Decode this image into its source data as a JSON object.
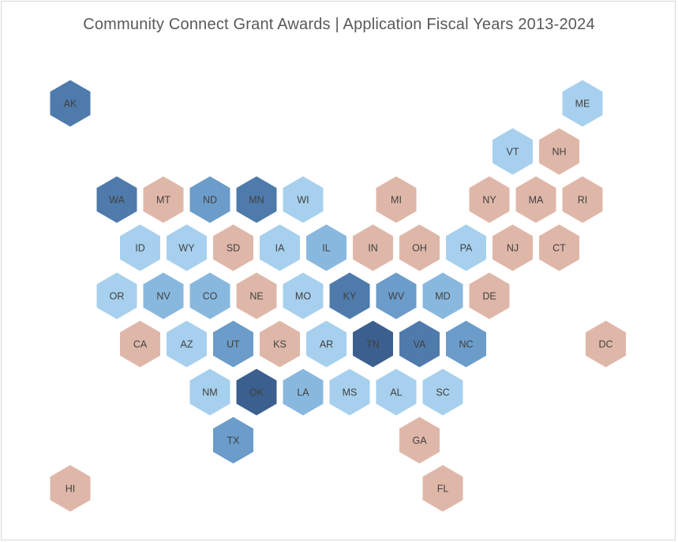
{
  "title": "Community Connect Grant Awards | Application Fiscal Years 2013-2024",
  "colors": {
    "light": "#a7d0ee",
    "medium": "#89b8df",
    "mid_dark": "#6b9cca",
    "dark": "#4e7bab",
    "darkest": "#3b5f8e",
    "none": "#dfb7a9"
  },
  "states": [
    {
      "abbr": "AK",
      "row": 0,
      "col": 0,
      "shade": "dark"
    },
    {
      "abbr": "ME",
      "row": 0,
      "col": 11,
      "shade": "light"
    },
    {
      "abbr": "VT",
      "row": 1,
      "col": 9.5,
      "shade": "light"
    },
    {
      "abbr": "NH",
      "row": 1,
      "col": 10.5,
      "shade": "none"
    },
    {
      "abbr": "WA",
      "row": 2,
      "col": 1,
      "shade": "dark"
    },
    {
      "abbr": "MT",
      "row": 2,
      "col": 2,
      "shade": "none"
    },
    {
      "abbr": "ND",
      "row": 2,
      "col": 3,
      "shade": "mid_dark"
    },
    {
      "abbr": "MN",
      "row": 2,
      "col": 4,
      "shade": "dark"
    },
    {
      "abbr": "WI",
      "row": 2,
      "col": 5,
      "shade": "light"
    },
    {
      "abbr": "MI",
      "row": 2,
      "col": 7,
      "shade": "none"
    },
    {
      "abbr": "NY",
      "row": 2,
      "col": 9,
      "shade": "none"
    },
    {
      "abbr": "MA",
      "row": 2,
      "col": 10,
      "shade": "none"
    },
    {
      "abbr": "RI",
      "row": 2,
      "col": 11,
      "shade": "none"
    },
    {
      "abbr": "ID",
      "row": 3,
      "col": 1.5,
      "shade": "light"
    },
    {
      "abbr": "WY",
      "row": 3,
      "col": 2.5,
      "shade": "light"
    },
    {
      "abbr": "SD",
      "row": 3,
      "col": 3.5,
      "shade": "none"
    },
    {
      "abbr": "IA",
      "row": 3,
      "col": 4.5,
      "shade": "light"
    },
    {
      "abbr": "IL",
      "row": 3,
      "col": 5.5,
      "shade": "medium"
    },
    {
      "abbr": "IN",
      "row": 3,
      "col": 6.5,
      "shade": "none"
    },
    {
      "abbr": "OH",
      "row": 3,
      "col": 7.5,
      "shade": "none"
    },
    {
      "abbr": "PA",
      "row": 3,
      "col": 8.5,
      "shade": "light"
    },
    {
      "abbr": "NJ",
      "row": 3,
      "col": 9.5,
      "shade": "none"
    },
    {
      "abbr": "CT",
      "row": 3,
      "col": 10.5,
      "shade": "none"
    },
    {
      "abbr": "OR",
      "row": 4,
      "col": 1,
      "shade": "light"
    },
    {
      "abbr": "NV",
      "row": 4,
      "col": 2,
      "shade": "medium"
    },
    {
      "abbr": "CO",
      "row": 4,
      "col": 3,
      "shade": "medium"
    },
    {
      "abbr": "NE",
      "row": 4,
      "col": 4,
      "shade": "none"
    },
    {
      "abbr": "MO",
      "row": 4,
      "col": 5,
      "shade": "light"
    },
    {
      "abbr": "KY",
      "row": 4,
      "col": 6,
      "shade": "dark"
    },
    {
      "abbr": "WV",
      "row": 4,
      "col": 7,
      "shade": "mid_dark"
    },
    {
      "abbr": "MD",
      "row": 4,
      "col": 8,
      "shade": "medium"
    },
    {
      "abbr": "DE",
      "row": 4,
      "col": 9,
      "shade": "none"
    },
    {
      "abbr": "CA",
      "row": 5,
      "col": 1.5,
      "shade": "none"
    },
    {
      "abbr": "AZ",
      "row": 5,
      "col": 2.5,
      "shade": "light"
    },
    {
      "abbr": "UT",
      "row": 5,
      "col": 3.5,
      "shade": "mid_dark"
    },
    {
      "abbr": "KS",
      "row": 5,
      "col": 4.5,
      "shade": "none"
    },
    {
      "abbr": "AR",
      "row": 5,
      "col": 5.5,
      "shade": "light"
    },
    {
      "abbr": "TN",
      "row": 5,
      "col": 6.5,
      "shade": "darkest"
    },
    {
      "abbr": "VA",
      "row": 5,
      "col": 7.5,
      "shade": "dark"
    },
    {
      "abbr": "NC",
      "row": 5,
      "col": 8.5,
      "shade": "mid_dark"
    },
    {
      "abbr": "DC",
      "row": 5,
      "col": 11.5,
      "shade": "none"
    },
    {
      "abbr": "NM",
      "row": 6,
      "col": 3,
      "shade": "light"
    },
    {
      "abbr": "OK",
      "row": 6,
      "col": 4,
      "shade": "darkest"
    },
    {
      "abbr": "LA",
      "row": 6,
      "col": 5,
      "shade": "medium"
    },
    {
      "abbr": "MS",
      "row": 6,
      "col": 6,
      "shade": "light"
    },
    {
      "abbr": "AL",
      "row": 6,
      "col": 7,
      "shade": "light"
    },
    {
      "abbr": "SC",
      "row": 6,
      "col": 8,
      "shade": "light"
    },
    {
      "abbr": "TX",
      "row": 7,
      "col": 3.5,
      "shade": "mid_dark"
    },
    {
      "abbr": "GA",
      "row": 7,
      "col": 7.5,
      "shade": "none"
    },
    {
      "abbr": "HI",
      "row": 8,
      "col": 0,
      "shade": "none"
    },
    {
      "abbr": "FL",
      "row": 8,
      "col": 8,
      "shade": "none"
    }
  ]
}
